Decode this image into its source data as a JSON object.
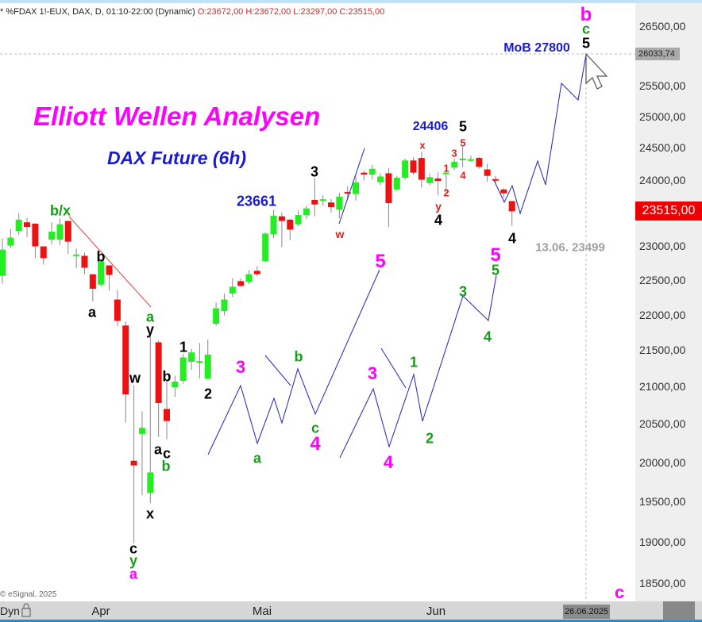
{
  "header": {
    "symbol": "* %FDAX 1!-EUX, DAX, D, 01:10-22:00 (Dynamic)",
    "ohlc": "O:23672,00 H:23672,00 L:23297,00 C:23515,00"
  },
  "title": "Elliott Wellen Analysen",
  "subtitle": "DAX Future (6h)",
  "copyright": "© eSignal, 2025",
  "bottom": {
    "dyn": "Dyn",
    "months": [
      "Apr",
      "Mai",
      "Jun"
    ],
    "date": "26.06.2025"
  },
  "price_labels": {
    "crosshair": "26033,74",
    "last": "23515,00"
  },
  "colors": {
    "up": "#22ee22",
    "down": "#ee1111",
    "wave": "#3333bb",
    "last": "#ee0000"
  },
  "annotations": [
    {
      "t": "b/x",
      "c": "#1a9a1a"
    },
    {
      "t": "b",
      "c": "#000"
    },
    {
      "t": "a",
      "c": "#000"
    },
    {
      "t": "a",
      "c": "#1a9a1a"
    },
    {
      "t": "y",
      "c": "#000"
    },
    {
      "t": "w",
      "c": "#000"
    },
    {
      "t": "b",
      "c": "#000"
    },
    {
      "t": "a",
      "c": "#000"
    },
    {
      "t": "c",
      "c": "#000"
    },
    {
      "t": "b",
      "c": "#1a9a1a"
    },
    {
      "t": "x",
      "c": "#000"
    },
    {
      "t": "c",
      "c": "#000"
    },
    {
      "t": "y",
      "c": "#1a9a1a"
    },
    {
      "t": "a",
      "c": "#f0f"
    },
    {
      "t": "1",
      "c": "#000"
    },
    {
      "t": "2",
      "c": "#000"
    },
    {
      "t": "23661",
      "c": "#1a1ad2"
    },
    {
      "t": "3",
      "c": "#000"
    },
    {
      "t": "w",
      "c": "#d22"
    },
    {
      "t": "24406",
      "c": "#1a1ad2"
    },
    {
      "t": "5",
      "c": "#000"
    },
    {
      "t": "x",
      "c": "#d22"
    },
    {
      "t": "3",
      "c": "#d22"
    },
    {
      "t": "5",
      "c": "#d22"
    },
    {
      "t": "1",
      "c": "#d22"
    },
    {
      "t": "4",
      "c": "#d22"
    },
    {
      "t": "2",
      "c": "#d22"
    },
    {
      "t": "y",
      "c": "#d22"
    },
    {
      "t": "4",
      "c": "#000"
    },
    {
      "t": "4",
      "c": "#000"
    },
    {
      "t": "13.06. 23499",
      "c": "#a0a0a0"
    },
    {
      "t": "5",
      "c": "#f0f"
    },
    {
      "t": "5",
      "c": "#1a9a1a"
    },
    {
      "t": "MoB 27800",
      "c": "#1a1ad2"
    },
    {
      "t": "5",
      "c": "#000"
    },
    {
      "t": "c",
      "c": "#1a9a1a"
    },
    {
      "t": "b",
      "c": "#f0f"
    },
    {
      "t": "c",
      "c": "#f0f"
    },
    {
      "t": "3",
      "c": "#f0f"
    },
    {
      "t": "b",
      "c": "#1a9a1a"
    },
    {
      "t": "a",
      "c": "#1a9a1a"
    },
    {
      "t": "c",
      "c": "#1a9a1a"
    },
    {
      "t": "4",
      "c": "#f0f"
    },
    {
      "t": "5",
      "c": "#f0f"
    },
    {
      "t": "3",
      "c": "#f0f"
    },
    {
      "t": "4",
      "c": "#f0f"
    },
    {
      "t": "1",
      "c": "#1a9a1a"
    },
    {
      "t": "2",
      "c": "#1a9a1a"
    },
    {
      "t": "3",
      "c": "#1a9a1a"
    },
    {
      "t": "4",
      "c": "#1a9a1a"
    }
  ],
  "chart_data": {
    "type": "candlestick",
    "scale": "log",
    "ylim": [
      18500,
      26500
    ],
    "yticks": [
      "26500,00",
      "25500,00",
      "25000,00",
      "24500,00",
      "24000,00",
      "23000,00",
      "22500,00",
      "22000,00",
      "21500,00",
      "21000,00",
      "20500,00",
      "20000,00",
      "19500,00",
      "19000,00",
      "18500,00"
    ],
    "ytick_values": [
      26500,
      25500,
      25000,
      24500,
      24000,
      23000,
      22500,
      22000,
      21500,
      21000,
      20500,
      20000,
      19500,
      19000,
      18500
    ],
    "xlabels": [
      "Apr",
      "Mai",
      "Jun"
    ],
    "ohlc": [
      [
        22558,
        23108,
        22443,
        22942
      ],
      [
        23000,
        23250,
        22965,
        23120
      ],
      [
        23220,
        23490,
        23160,
        23390
      ],
      [
        23350,
        23420,
        23130,
        23280
      ],
      [
        23330,
        23330,
        22815,
        22990
      ],
      [
        22990,
        22990,
        22720,
        22815
      ],
      [
        23090,
        23350,
        23020,
        23210
      ],
      [
        23090,
        23410,
        23010,
        23320
      ],
      [
        23370,
        23370,
        22880,
        23060
      ],
      [
        22860,
        22960,
        22670,
        22870
      ],
      [
        22850,
        22900,
        22580,
        22675
      ],
      [
        22580,
        22580,
        22190,
        22370
      ],
      [
        22430,
        22800,
        22400,
        22770
      ],
      [
        22710,
        22710,
        22340,
        22570
      ],
      [
        22215,
        22350,
        21835,
        21910
      ],
      [
        21845,
        21900,
        20520,
        20896
      ],
      [
        20020,
        21020,
        18980,
        19960
      ],
      [
        20370,
        20670,
        19580,
        20450
      ],
      [
        19610,
        21700,
        19480,
        19870
      ],
      [
        21610,
        21640,
        20330,
        20780
      ],
      [
        20700,
        21080,
        20300,
        20540
      ],
      [
        20990,
        21150,
        20860,
        21070
      ],
      [
        21080,
        21450,
        21040,
        21400
      ],
      [
        21340,
        21520,
        21230,
        21470
      ],
      [
        21340,
        21600,
        21110,
        21350
      ],
      [
        21110,
        21650,
        21100,
        21440
      ],
      [
        21870,
        22170,
        21840,
        22090
      ],
      [
        22050,
        22300,
        21990,
        22215
      ],
      [
        22300,
        22520,
        22250,
        22400
      ],
      [
        22480,
        22520,
        22390,
        22410
      ],
      [
        22470,
        22640,
        22440,
        22580
      ],
      [
        22630,
        22700,
        22550,
        22580
      ],
      [
        22770,
        23200,
        22760,
        23180
      ],
      [
        23170,
        23540,
        23110,
        23450
      ],
      [
        23440,
        23500,
        22980,
        23370
      ],
      [
        23390,
        23400,
        23080,
        23240
      ],
      [
        23320,
        23530,
        23290,
        23460
      ],
      [
        23460,
        23600,
        23400,
        23560
      ],
      [
        23690,
        24030,
        23440,
        23620
      ],
      [
        23680,
        23760,
        23600,
        23700
      ],
      [
        23650,
        23700,
        23500,
        23580
      ],
      [
        23540,
        23800,
        23410,
        23740
      ],
      [
        23810,
        23900,
        23700,
        23790
      ],
      [
        23780,
        24050,
        23680,
        23960
      ],
      [
        24110,
        24140,
        23990,
        24080
      ],
      [
        24080,
        24230,
        24000,
        24170
      ],
      [
        23960,
        24100,
        23920,
        24050
      ],
      [
        24100,
        24180,
        23280,
        23640
      ],
      [
        23850,
        24060,
        23830,
        24030
      ],
      [
        24030,
        24330,
        24000,
        24300
      ],
      [
        24300,
        24350,
        24080,
        24110
      ],
      [
        24340,
        24440,
        23880,
        24000
      ],
      [
        23950,
        24100,
        23920,
        24040
      ],
      [
        24020,
        24120,
        23760,
        23980
      ],
      [
        24100,
        24230,
        23800,
        24110
      ],
      [
        24190,
        24330,
        24150,
        24280
      ],
      [
        24320,
        24520,
        24200,
        24330
      ],
      [
        24310,
        24370,
        24280,
        24320
      ],
      [
        24340,
        24360,
        24170,
        24200
      ],
      [
        24160,
        24250,
        23970,
        24060
      ],
      [
        24010,
        24060,
        23950,
        23990
      ],
      [
        23850,
        23870,
        23720,
        23790
      ],
      [
        23672,
        23672,
        23297,
        23515
      ]
    ]
  }
}
